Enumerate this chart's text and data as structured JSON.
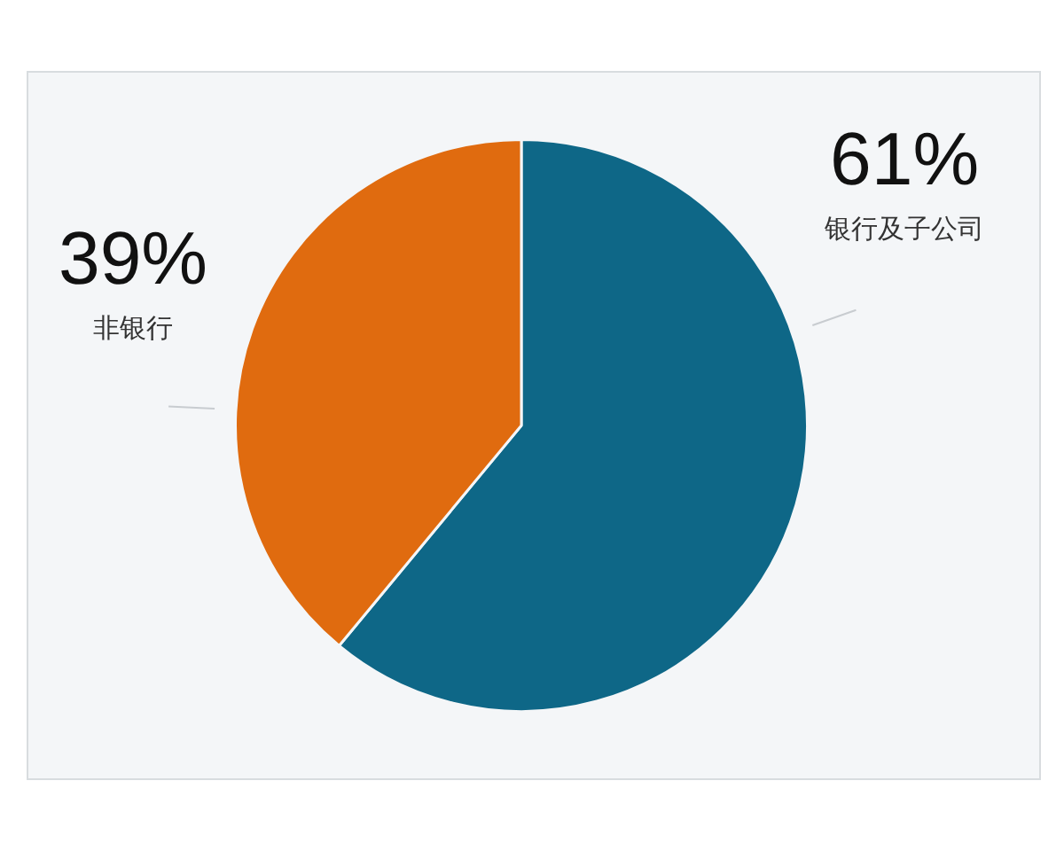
{
  "chart_data": {
    "type": "pie",
    "categories": [
      "银行及子公司",
      "非银行"
    ],
    "values": [
      61,
      39
    ],
    "value_labels": [
      "61%",
      "39%"
    ],
    "colors": [
      "#0e6787",
      "#e06b0f"
    ],
    "legend": false
  }
}
